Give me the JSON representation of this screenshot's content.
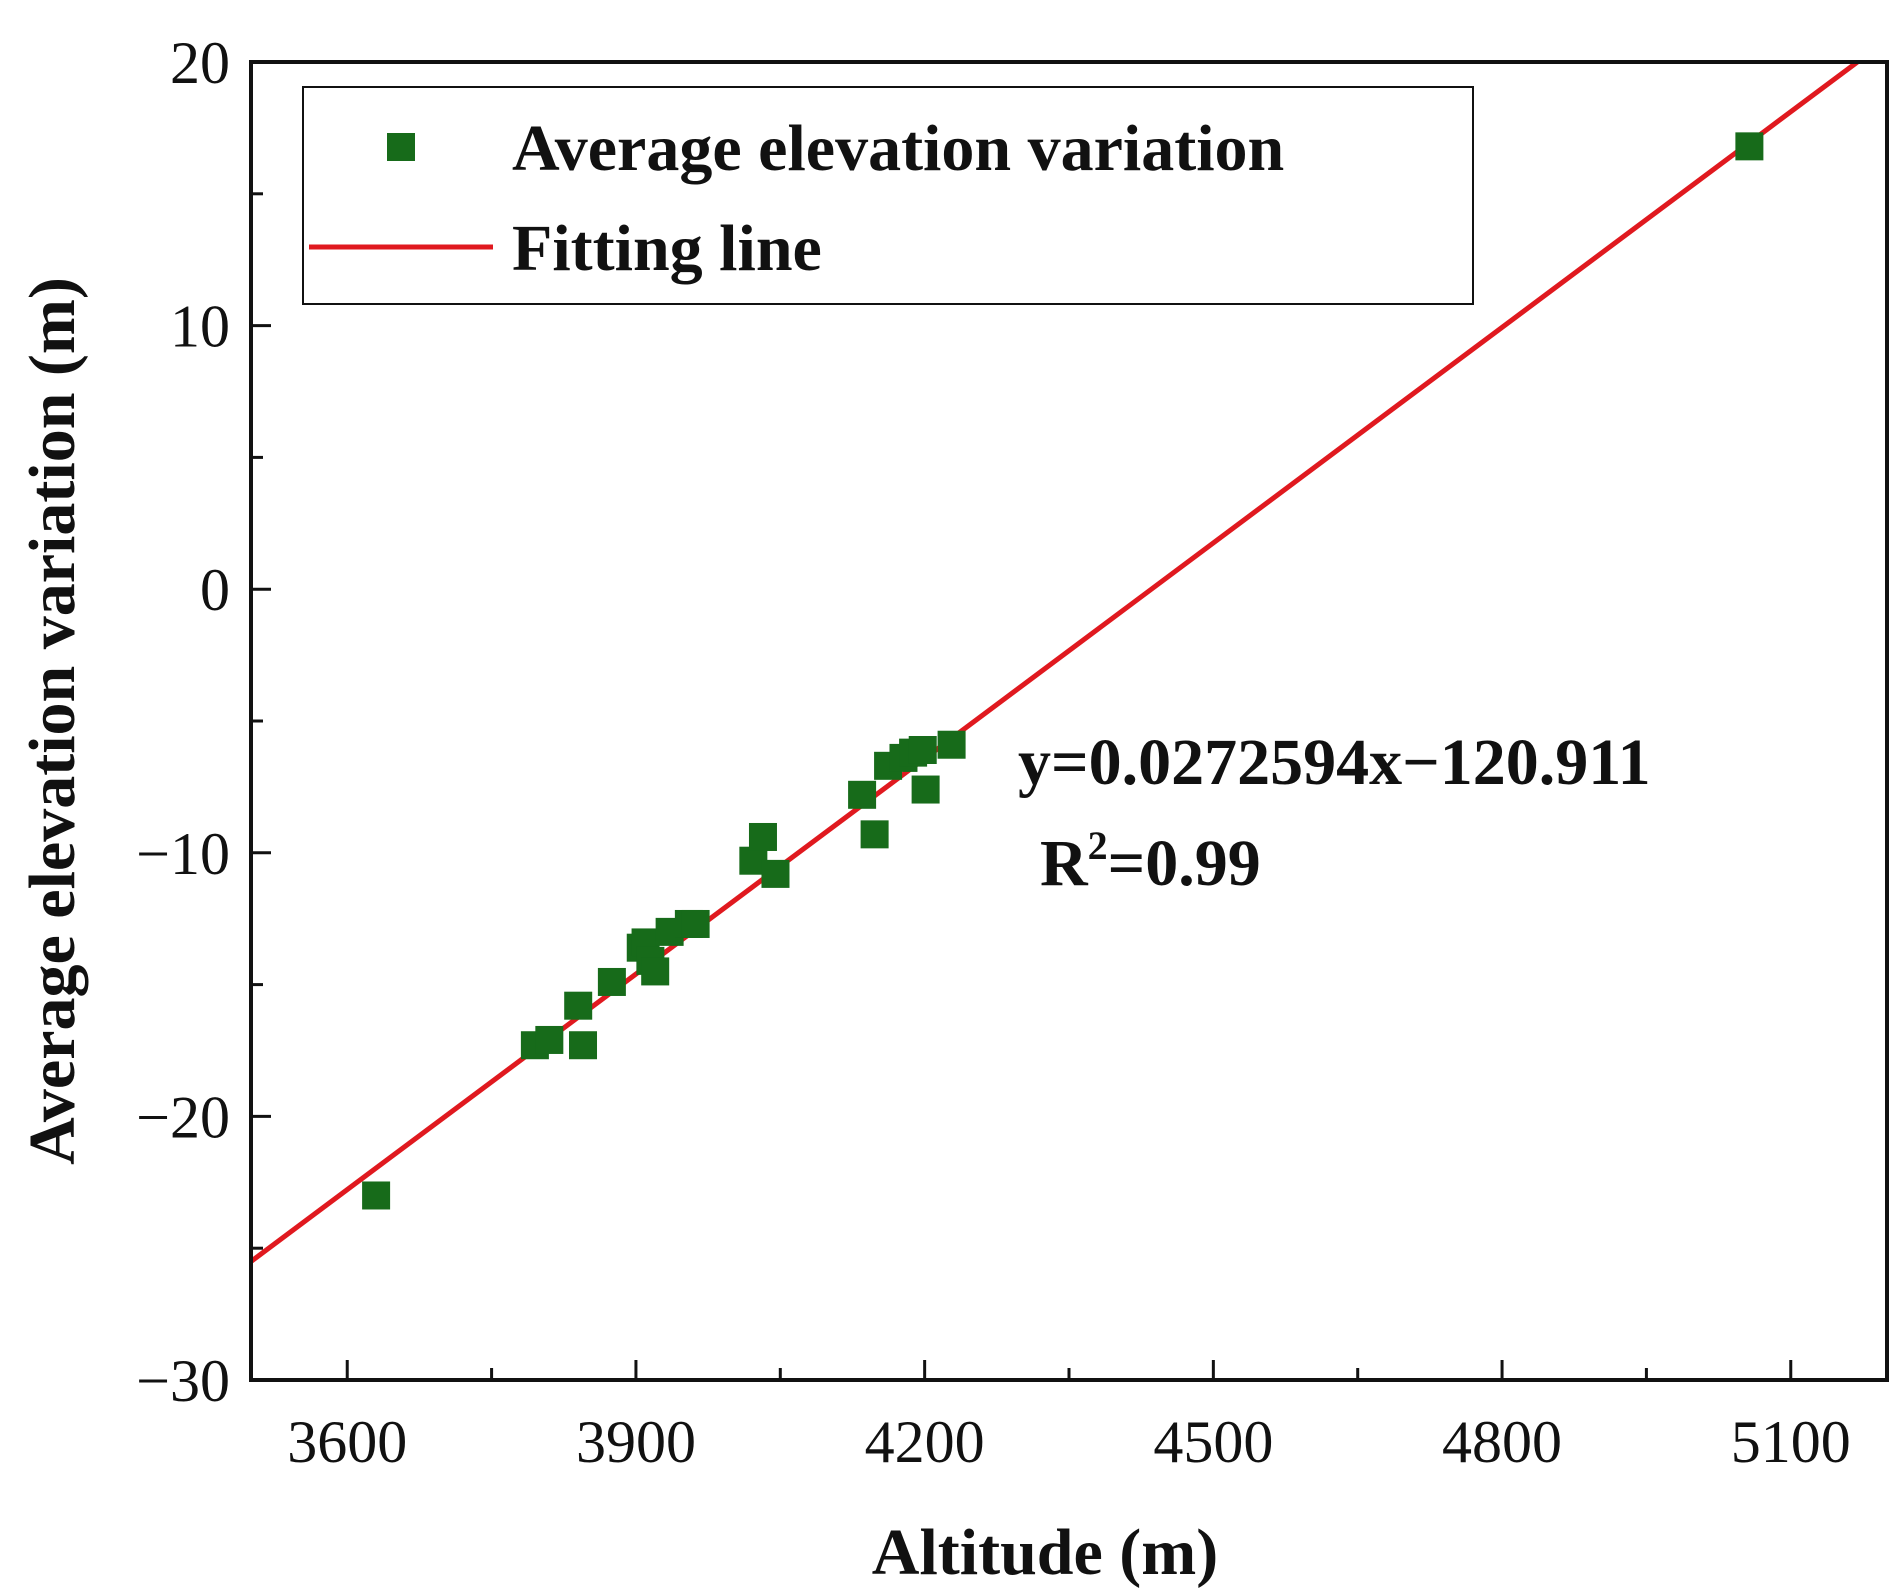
{
  "chart_data": {
    "type": "scatter",
    "title": "",
    "xlabel": "Altitude (m)",
    "ylabel": "Average elevation variation (m)",
    "xlim": [
      3500,
      5200
    ],
    "ylim": [
      -30,
      20
    ],
    "xticks": [
      3600,
      3900,
      4200,
      4500,
      4800,
      5100
    ],
    "xtick_labels": [
      "3600",
      "3900",
      "4200",
      "4500",
      "4800",
      "5100"
    ],
    "xminor": [
      3750,
      4050,
      4350,
      4650,
      4950
    ],
    "yticks": [
      -30,
      -20,
      -10,
      0,
      10,
      20
    ],
    "ytick_labels": [
      "−30",
      "−20",
      "−10",
      "0",
      "10",
      "20"
    ],
    "yminor": [
      -25,
      -15,
      -5,
      5,
      15
    ],
    "grid": false,
    "legend_position": "top-left",
    "series": [
      {
        "name": "Average elevation variation",
        "kind": "scatter",
        "marker": "square",
        "color": "#176b1a",
        "points": [
          [
            3630,
            -23.0
          ],
          [
            3795,
            -17.3
          ],
          [
            3810,
            -17.1
          ],
          [
            3840,
            -15.8
          ],
          [
            3845,
            -17.3
          ],
          [
            3875,
            -14.9
          ],
          [
            3905,
            -13.6
          ],
          [
            3910,
            -13.4
          ],
          [
            3915,
            -14.1
          ],
          [
            3920,
            -14.5
          ],
          [
            3935,
            -13.0
          ],
          [
            3955,
            -12.7
          ],
          [
            3962,
            -12.7
          ],
          [
            4022,
            -10.3
          ],
          [
            4032,
            -9.4
          ],
          [
            4045,
            -10.8
          ],
          [
            4135,
            -7.8
          ],
          [
            4148,
            -9.3
          ],
          [
            4162,
            -6.7
          ],
          [
            4178,
            -6.4
          ],
          [
            4188,
            -6.2
          ],
          [
            4198,
            -6.1
          ],
          [
            4201,
            -7.6
          ],
          [
            4228,
            -5.9
          ],
          [
            5057,
            16.8
          ]
        ]
      },
      {
        "name": "Fitting line",
        "kind": "line",
        "color": "#e0191f",
        "slope": 0.0272594,
        "intercept": -120.911,
        "x_range": [
          3500,
          5200
        ]
      }
    ],
    "annotations": {
      "equation": "y=0.0272594x−120.911",
      "r2_prefix": "R",
      "r2_sup": "2",
      "r2_suffix": "=0.99"
    }
  }
}
